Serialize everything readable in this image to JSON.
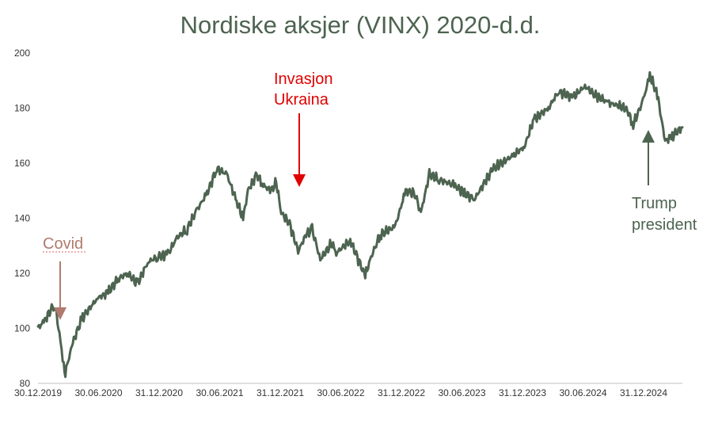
{
  "chart_data": {
    "type": "line",
    "title": "Nordiske aksjer (VINX) 2020-d.d.",
    "xlabel": "",
    "ylabel": "",
    "ylim": [
      80,
      200
    ],
    "y_ticks": [
      80,
      100,
      120,
      140,
      160,
      180,
      200
    ],
    "x_tick_labels": [
      "30.12.2019",
      "30.06.2020",
      "31.12.2020",
      "30.06.2021",
      "31.12.2021",
      "30.06.2022",
      "31.12.2022",
      "30.06.2023",
      "31.12.2023",
      "30.06.2024",
      "31.12.2024"
    ],
    "grid": false,
    "legend": "none",
    "line_color": "#4d6450",
    "series": [
      {
        "x": [
          "2019-12-30",
          "2020-01-20",
          "2020-02-19",
          "2020-03-05",
          "2020-03-18",
          "2020-03-23",
          "2020-04-15",
          "2020-05-15",
          "2020-06-30",
          "2020-08-01",
          "2020-09-01",
          "2020-10-01",
          "2020-10-30",
          "2020-12-01",
          "2020-12-31",
          "2021-02-01",
          "2021-03-01",
          "2021-04-01",
          "2021-05-01",
          "2021-06-01",
          "2021-07-01",
          "2021-08-01",
          "2021-08-31",
          "2021-09-20",
          "2021-10-05",
          "2021-11-01",
          "2021-11-20",
          "2021-12-15",
          "2021-12-31",
          "2022-01-15",
          "2022-02-10",
          "2022-03-08",
          "2022-04-01",
          "2022-04-20",
          "2022-05-15",
          "2022-06-20",
          "2022-06-30",
          "2022-08-15",
          "2022-09-30",
          "2022-10-15",
          "2022-11-15",
          "2022-12-31",
          "2023-02-01",
          "2023-03-01",
          "2023-03-20",
          "2023-04-15",
          "2023-05-15",
          "2023-06-30",
          "2023-08-01",
          "2023-09-01",
          "2023-10-27",
          "2023-12-31",
          "2024-02-01",
          "2024-03-01",
          "2024-04-15",
          "2024-05-15",
          "2024-06-30",
          "2024-08-05",
          "2024-09-01",
          "2024-10-15",
          "2024-12-10",
          "2024-12-31",
          "2025-01-31",
          "2025-02-20",
          "2025-03-15",
          "2025-04-08",
          "2025-04-30",
          "2025-05-31"
        ],
        "values": [
          100,
          103,
          109,
          98,
          86,
          84,
          95,
          104,
          111,
          113,
          118,
          120,
          116,
          124,
          126,
          127,
          133,
          136,
          143,
          149,
          158,
          156,
          146,
          140,
          150,
          156,
          152,
          150,
          153,
          142,
          138,
          128,
          134,
          136,
          125,
          131,
          127,
          132,
          119,
          125,
          134,
          137,
          150,
          149,
          142,
          156,
          154,
          152,
          149,
          147,
          158,
          163,
          166,
          176,
          180,
          186,
          184,
          188,
          185,
          182,
          180,
          174,
          183,
          192,
          185,
          168,
          170,
          173
        ]
      }
    ],
    "annotations": [
      {
        "label": "Covid",
        "date": "2020-03-05",
        "value": 103,
        "color": "#b07a6e"
      },
      {
        "label_lines": [
          "Invasjon",
          "Ukraina"
        ],
        "date": "2022-02-24",
        "value": 146,
        "color": "#e00000"
      },
      {
        "label_lines": [
          "Trump",
          "president"
        ],
        "date": "2025-01-20",
        "value": 173,
        "color": "#4d6450"
      }
    ]
  }
}
